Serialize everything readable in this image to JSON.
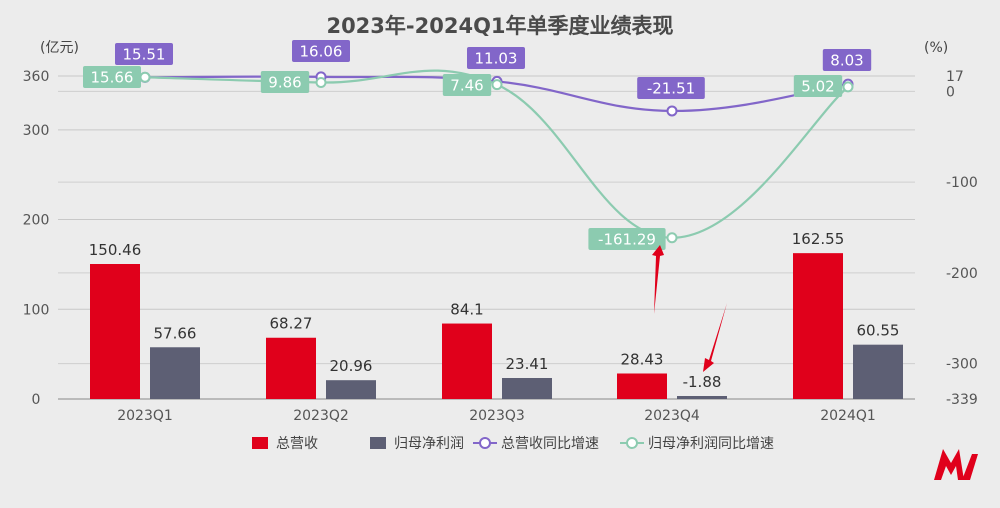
{
  "chart_data": {
    "type": "bar",
    "title": "2023年-2024Q1年单季度业绩表现",
    "left_axis_unit": "(亿元)",
    "right_axis_unit": "(%)",
    "categories": [
      "2023Q1",
      "2023Q2",
      "2023Q3",
      "2023Q4",
      "2024Q1"
    ],
    "left_axis": {
      "ylim": [
        0,
        360
      ],
      "ticks": [
        "0",
        "100",
        "200",
        "300",
        "360"
      ],
      "tick_values": [
        0,
        100,
        200,
        300,
        360
      ]
    },
    "right_axis": {
      "ylim": [
        -339,
        17
      ],
      "ticks": [
        "-339",
        "-300",
        "-200",
        "-100",
        "0",
        "17"
      ],
      "tick_values": [
        -339,
        -300,
        -200,
        -100,
        0,
        17
      ]
    },
    "series": [
      {
        "name": "总营收",
        "type": "bar",
        "axis": "left",
        "color": "#e0001b",
        "values": [
          150.46,
          68.27,
          84.1,
          28.43,
          162.55
        ],
        "labels": [
          "150.46",
          "68.27",
          "84.1",
          "28.43",
          "162.55"
        ]
      },
      {
        "name": "归母净利润",
        "type": "bar",
        "axis": "left",
        "color": "#5d5f74",
        "values": [
          57.66,
          20.96,
          23.41,
          -1.88,
          60.55
        ],
        "labels": [
          "57.66",
          "20.96",
          "23.41",
          "-1.88",
          "60.55"
        ]
      },
      {
        "name": "总营收同比增速",
        "type": "line",
        "axis": "right",
        "color": "#8266c9",
        "values": [
          15.51,
          16.06,
          11.03,
          -21.51,
          8.03
        ],
        "labels": [
          "15.51",
          "16.06",
          "11.03",
          "-21.51",
          "8.03"
        ]
      },
      {
        "name": "归母净利润同比增速",
        "type": "line",
        "axis": "right",
        "color": "#8ccbb0",
        "values": [
          15.66,
          9.86,
          7.46,
          -161.29,
          5.02
        ],
        "labels": [
          "15.66",
          "9.86",
          "7.46",
          "-161.29",
          "5.02"
        ]
      }
    ],
    "legend": "bottom",
    "grid": true
  },
  "colors": {
    "background": "#ececec",
    "grid": "#c8c8c8",
    "logo": "#e0001b",
    "arrow": "#e0001b"
  }
}
